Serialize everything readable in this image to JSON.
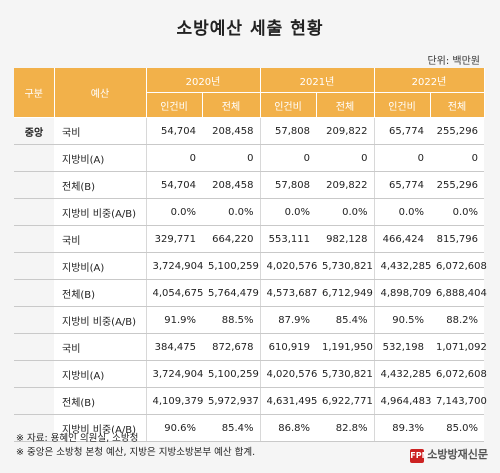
{
  "title": "소방예산 세출 현황",
  "unit": "단위: 백만원",
  "headers": {
    "col_group": "구분",
    "col_budget": "예산",
    "years": [
      "2020년",
      "2021년",
      "2022년"
    ],
    "sub": [
      "인건비",
      "전체"
    ]
  },
  "rows": [
    {
      "cat": "중앙",
      "label": "국비",
      "v": [
        "54,704",
        "208,458",
        "57,808",
        "209,822",
        "65,774",
        "255,296"
      ]
    },
    {
      "cat": "",
      "label": "지방비(A)",
      "v": [
        "0",
        "0",
        "0",
        "0",
        "0",
        "0"
      ]
    },
    {
      "cat": "",
      "label": "전체(B)",
      "v": [
        "54,704",
        "208,458",
        "57,808",
        "209,822",
        "65,774",
        "255,296"
      ]
    },
    {
      "cat": "",
      "label": "지방비 비중(A/B)",
      "v": [
        "0.0%",
        "0.0%",
        "0.0%",
        "0.0%",
        "0.0%",
        "0.0%"
      ]
    },
    {
      "cat": "",
      "label": "국비",
      "v": [
        "329,771",
        "664,220",
        "553,111",
        "982,128",
        "466,424",
        "815,796"
      ]
    },
    {
      "cat": "",
      "label": "지방비(A)",
      "v": [
        "3,724,904",
        "5,100,259",
        "4,020,576",
        "5,730,821",
        "4,432,285",
        "6,072,608"
      ]
    },
    {
      "cat": "",
      "label": "전체(B)",
      "v": [
        "4,054,675",
        "5,764,479",
        "4,573,687",
        "6,712,949",
        "4,898,709",
        "6,888,404"
      ]
    },
    {
      "cat": "",
      "label": "지방비 비중(A/B)",
      "v": [
        "91.9%",
        "88.5%",
        "87.9%",
        "85.4%",
        "90.5%",
        "88.2%"
      ]
    },
    {
      "cat": "",
      "label": "국비",
      "v": [
        "384,475",
        "872,678",
        "610,919",
        "1,191,950",
        "532,198",
        "1,071,092"
      ]
    },
    {
      "cat": "",
      "label": "지방비(A)",
      "v": [
        "3,724,904",
        "5,100,259",
        "4,020,576",
        "5,730,821",
        "4,432,285",
        "6,072,608"
      ]
    },
    {
      "cat": "",
      "label": "전체(B)",
      "v": [
        "4,109,379",
        "5,972,937",
        "4,631,495",
        "6,922,771",
        "4,964,483",
        "7,143,700"
      ]
    },
    {
      "cat": "",
      "label": "지방비 비중(A/B)",
      "v": [
        "90.6%",
        "85.4%",
        "86.8%",
        "82.8%",
        "89.3%",
        "85.0%"
      ]
    }
  ],
  "footer": [
    "※ 자료: 용혜인 의원실, 소방청",
    "※ 중앙은 소방청 본청 예산, 지방은 지방소방본부 예산 합계."
  ],
  "logo": {
    "mark": "FPN",
    "text": "소방방재신문"
  }
}
